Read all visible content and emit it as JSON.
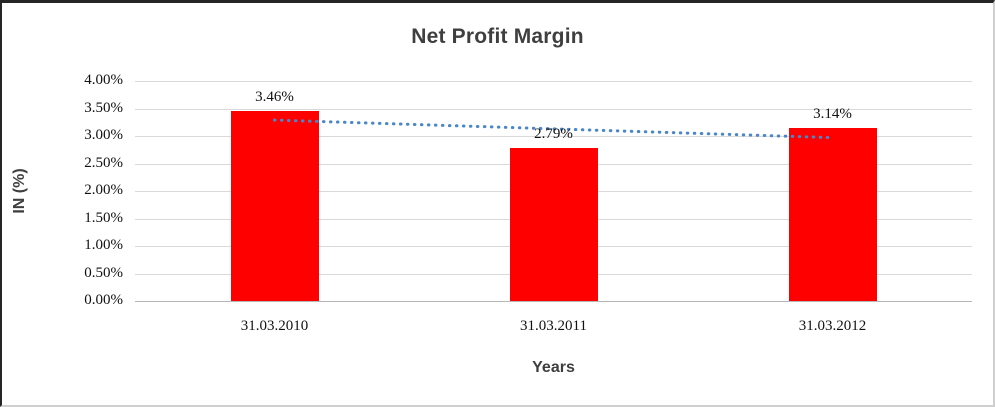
{
  "chart_data": {
    "type": "bar",
    "title": "Net Profit Margin",
    "xlabel": "Years",
    "ylabel": "IN (%)",
    "categories": [
      "31.03.2010",
      "31.03.2011",
      "31.03.2012"
    ],
    "values": [
      3.46,
      2.79,
      3.14
    ],
    "value_labels": [
      "3.46%",
      "2.79%",
      "3.14%"
    ],
    "ylim": [
      0,
      4
    ],
    "ytick_step": 0.5,
    "ytick_labels": [
      "0.00%",
      "0.50%",
      "1.00%",
      "1.50%",
      "2.00%",
      "2.50%",
      "3.00%",
      "3.50%",
      "4.00%"
    ],
    "grid": true,
    "legend": "none",
    "trendline": {
      "style": "dotted",
      "color": "#4a86c8",
      "start_value": 3.29,
      "end_value": 2.97
    }
  },
  "colors": {
    "bar": "#ff0000",
    "gridline": "#d9d9d9",
    "axis_line": "#b7b7b7",
    "title_text": "#3f3f3f",
    "tick_text": "#111111",
    "trendline": "#4a86c8"
  }
}
